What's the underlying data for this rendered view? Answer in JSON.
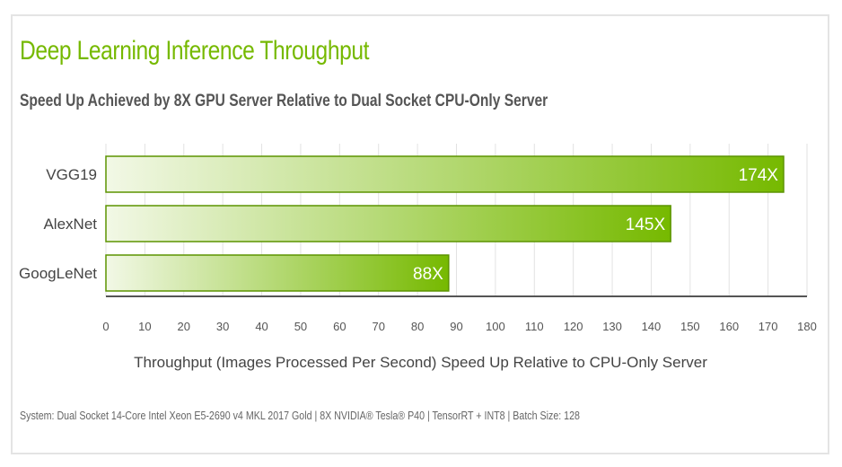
{
  "chart_data": {
    "type": "bar",
    "orientation": "horizontal",
    "title": "Deep Learning Inference Throughput",
    "subtitle": "Speed Up Achieved by 8X GPU Server Relative to Dual Socket CPU-Only Server",
    "categories": [
      "VGG19",
      "AlexNet",
      "GoogLeNet"
    ],
    "values": [
      174,
      145,
      88
    ],
    "value_labels": [
      "174X",
      "145X",
      "88X"
    ],
    "xlabel": "Throughput (Images Processed Per Second) Speed Up Relative to CPU-Only Server",
    "ylabel": "",
    "xlim": [
      0,
      180
    ],
    "xticks": [
      0,
      10,
      20,
      30,
      40,
      50,
      60,
      70,
      80,
      90,
      100,
      110,
      120,
      130,
      140,
      150,
      160,
      170,
      180
    ],
    "grid": true,
    "colors": {
      "bar_dark": "#76b900",
      "bar_light": "#f2f8e6",
      "bar_border": "#5c9400",
      "grid": "#e2e2e2",
      "axis": "#555555",
      "title": "#76b900"
    }
  },
  "footer": "System: Dual Socket 14-Core Intel Xeon E5-2690 v4 MKL 2017 Gold | 8X NVIDIA® Tesla® P40 | TensorRT + INT8 | Batch Size: 128"
}
